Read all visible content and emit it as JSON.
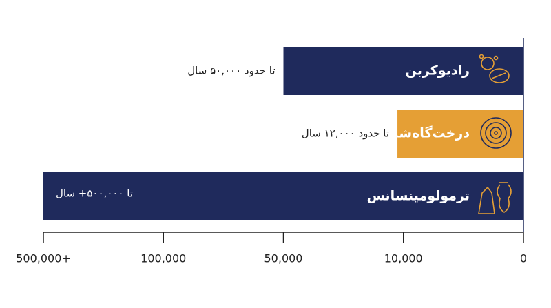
{
  "chart_data": {
    "type": "bar",
    "orientation": "horizontal",
    "direction": "right-to-left",
    "categories": [
      "رادیوکربن",
      "درخت‌گاه‌شماری",
      "ترمولومینسانس"
    ],
    "values": [
      50000,
      12000,
      500000
    ],
    "value_labels": [
      "تا حدود ۵۰,۰۰۰ سال",
      "تا حدود ۱۲,۰۰۰ سال",
      "تا ۵۰۰,۰۰۰+ سال"
    ],
    "colors": [
      "#1f2a5c",
      "#e59f35",
      "#1f2a5c"
    ],
    "xlim": [
      0,
      500000
    ],
    "xticks": [
      0,
      {
        "value": 10000,
        "label": "10,000"
      },
      {
        "value": 50000,
        "label": "50,000"
      },
      {
        "value": 100000,
        "label": "100,000"
      },
      {
        "value": 500000,
        "label": "500,000+"
      }
    ]
  }
}
